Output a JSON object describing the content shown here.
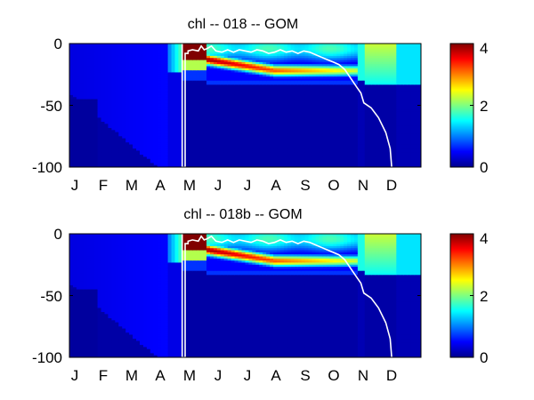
{
  "chart_data": [
    {
      "type": "heatmap",
      "title": "chl -- 018 -- GOM",
      "x_tick_labels": [
        "J",
        "F",
        "M",
        "A",
        "M",
        "J",
        "J",
        "A",
        "S",
        "O",
        "N",
        "D"
      ],
      "y_tick_labels": [
        "0",
        "-50",
        "-100"
      ],
      "y_ticks": [
        0,
        -50,
        -100
      ],
      "ylim": [
        -100,
        0
      ],
      "colorbar": {
        "ticks": [
          0,
          2,
          4
        ],
        "tick_labels": [
          "0",
          "2",
          "4"
        ],
        "range": [
          0,
          4
        ],
        "colormap": "jet"
      },
      "mixed_layer_line": {
        "color": "#ffffff",
        "points": [
          [
            3.85,
            0
          ],
          [
            3.85,
            -100
          ],
          [
            3.95,
            -100
          ],
          [
            3.95,
            -8
          ],
          [
            4.05,
            -8
          ],
          [
            4.05,
            -6
          ],
          [
            4.2,
            -5
          ],
          [
            4.4,
            -6
          ],
          [
            4.5,
            -2
          ],
          [
            4.6,
            -5
          ],
          [
            4.7,
            -4
          ],
          [
            4.85,
            -2
          ],
          [
            5.0,
            -6
          ],
          [
            5.2,
            -7
          ],
          [
            5.4,
            -5
          ],
          [
            5.6,
            -7
          ],
          [
            5.8,
            -5
          ],
          [
            6.0,
            -6
          ],
          [
            6.2,
            -7
          ],
          [
            6.4,
            -5
          ],
          [
            6.6,
            -6
          ],
          [
            6.8,
            -8
          ],
          [
            7.0,
            -7
          ],
          [
            7.2,
            -5
          ],
          [
            7.4,
            -7
          ],
          [
            7.6,
            -6
          ],
          [
            7.8,
            -8
          ],
          [
            8.0,
            -6
          ],
          [
            8.2,
            -7
          ],
          [
            8.4,
            -9
          ],
          [
            8.6,
            -11
          ],
          [
            8.8,
            -13
          ],
          [
            9.0,
            -15
          ],
          [
            9.2,
            -17
          ],
          [
            9.4,
            -21
          ],
          [
            9.6,
            -28
          ],
          [
            9.8,
            -35
          ],
          [
            9.95,
            -40
          ],
          [
            10.05,
            -48
          ],
          [
            10.3,
            -52
          ],
          [
            10.55,
            -60
          ],
          [
            10.8,
            -72
          ],
          [
            10.95,
            -85
          ],
          [
            11.0,
            -100
          ]
        ]
      }
    },
    {
      "type": "heatmap",
      "title": "chl -- 018b -- GOM",
      "x_tick_labels": [
        "J",
        "F",
        "M",
        "A",
        "M",
        "J",
        "J",
        "A",
        "S",
        "O",
        "N",
        "D"
      ],
      "y_tick_labels": [
        "0",
        "-50",
        "-100"
      ],
      "y_ticks": [
        0,
        -50,
        -100
      ],
      "ylim": [
        -100,
        0
      ],
      "colorbar": {
        "ticks": [
          0,
          2,
          4
        ],
        "tick_labels": [
          "0",
          "2",
          "4"
        ],
        "range": [
          0,
          4
        ],
        "colormap": "jet"
      },
      "mixed_layer_line": {
        "color": "#ffffff",
        "points": [
          [
            3.85,
            0
          ],
          [
            3.85,
            -100
          ],
          [
            3.95,
            -100
          ],
          [
            3.95,
            -8
          ],
          [
            4.05,
            -8
          ],
          [
            4.05,
            -6
          ],
          [
            4.2,
            -5
          ],
          [
            4.4,
            -6
          ],
          [
            4.5,
            -2
          ],
          [
            4.6,
            -5
          ],
          [
            4.7,
            -4
          ],
          [
            4.85,
            -2
          ],
          [
            5.0,
            -6
          ],
          [
            5.2,
            -7
          ],
          [
            5.4,
            -5
          ],
          [
            5.6,
            -7
          ],
          [
            5.8,
            -5
          ],
          [
            6.0,
            -6
          ],
          [
            6.2,
            -7
          ],
          [
            6.4,
            -5
          ],
          [
            6.6,
            -6
          ],
          [
            6.8,
            -8
          ],
          [
            7.0,
            -7
          ],
          [
            7.2,
            -5
          ],
          [
            7.4,
            -7
          ],
          [
            7.6,
            -6
          ],
          [
            7.8,
            -8
          ],
          [
            8.0,
            -6
          ],
          [
            8.2,
            -7
          ],
          [
            8.4,
            -9
          ],
          [
            8.6,
            -11
          ],
          [
            8.8,
            -13
          ],
          [
            9.0,
            -15
          ],
          [
            9.2,
            -17
          ],
          [
            9.4,
            -21
          ],
          [
            9.6,
            -28
          ],
          [
            9.8,
            -35
          ],
          [
            9.95,
            -40
          ],
          [
            10.05,
            -48
          ],
          [
            10.3,
            -52
          ],
          [
            10.55,
            -60
          ],
          [
            10.8,
            -72
          ],
          [
            10.95,
            -85
          ],
          [
            11.0,
            -100
          ]
        ]
      }
    }
  ]
}
